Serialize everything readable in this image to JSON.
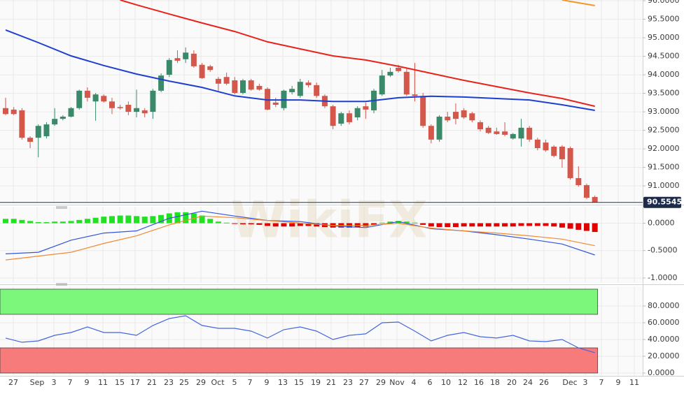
{
  "watermark": "WikiFX",
  "chart_data": [
    {
      "type": "candlestick",
      "up_color": "#3a8a6a",
      "down_color": "#d4574c",
      "open": [
        93.1,
        93.06,
        93.04,
        92.3,
        92.3,
        92.34,
        92.66,
        92.81,
        92.87,
        93.1,
        93.57,
        93.28,
        93.43,
        93.28,
        93.13,
        93.19,
        93.0,
        93.04,
        93.0,
        93.57,
        94.0,
        94.45,
        94.42,
        94.57,
        94.27,
        94.23,
        93.89,
        93.94,
        93.85,
        93.51,
        93.85,
        93.7,
        93.62,
        93.25,
        93.1,
        93.53,
        93.43,
        93.79,
        93.72,
        93.43,
        93.15,
        92.68,
        92.96,
        92.85,
        93.15,
        93.04,
        93.47,
        93.98,
        94.19,
        94.08,
        93.47,
        93.43,
        92.62,
        92.25,
        92.87,
        93.0,
        93.04,
        92.96,
        92.72,
        92.57,
        92.47,
        92.47,
        92.28,
        92.28,
        92.57,
        92.25,
        92.17,
        92.06,
        92.06,
        92.02,
        91.21,
        91.02,
        90.7
      ],
      "high": [
        93.38,
        93.13,
        93.1,
        92.34,
        92.66,
        92.72,
        93.1,
        92.91,
        93.13,
        93.6,
        93.66,
        93.51,
        93.47,
        93.38,
        93.19,
        93.28,
        93.6,
        93.1,
        93.62,
        94.04,
        94.45,
        94.66,
        94.74,
        94.66,
        94.32,
        94.27,
        93.94,
        94.06,
        93.94,
        93.89,
        93.89,
        93.76,
        93.66,
        93.38,
        93.6,
        93.7,
        93.89,
        93.85,
        93.79,
        93.47,
        93.19,
        93.0,
        93.04,
        93.15,
        93.25,
        93.62,
        94.13,
        94.19,
        94.27,
        94.19,
        94.32,
        93.51,
        92.66,
        92.91,
        93.0,
        93.23,
        93.1,
        93.0,
        92.77,
        92.62,
        92.57,
        92.72,
        92.43,
        92.81,
        92.62,
        92.3,
        92.25,
        92.1,
        92.1,
        92.06,
        91.53,
        91.06,
        90.74
      ],
      "low": [
        92.91,
        92.91,
        92.25,
        92.02,
        91.77,
        92.28,
        92.62,
        92.77,
        92.85,
        93.06,
        93.28,
        92.76,
        93.25,
        92.94,
        93.06,
        92.91,
        92.85,
        92.85,
        92.81,
        93.53,
        93.94,
        94.32,
        94.32,
        94.19,
        93.89,
        94.08,
        93.57,
        93.72,
        93.47,
        93.47,
        93.57,
        93.57,
        93.04,
        93.13,
        93.04,
        93.47,
        93.38,
        93.66,
        93.38,
        93.1,
        92.53,
        92.62,
        92.66,
        92.77,
        92.81,
        92.96,
        93.43,
        93.94,
        94.06,
        93.43,
        93.28,
        92.57,
        92.15,
        92.19,
        92.72,
        92.66,
        92.81,
        92.72,
        92.47,
        92.4,
        92.38,
        92.34,
        92.25,
        92.06,
        92.19,
        91.96,
        91.92,
        91.77,
        91.49,
        91.17,
        90.98,
        90.64,
        90.55
      ],
      "close": [
        92.94,
        92.94,
        92.3,
        92.19,
        92.62,
        92.66,
        92.81,
        92.87,
        93.1,
        93.57,
        93.38,
        93.47,
        93.28,
        93.1,
        93.1,
        93.0,
        93.1,
        92.96,
        93.57,
        93.98,
        94.4,
        94.38,
        94.6,
        94.23,
        93.91,
        94.13,
        93.76,
        93.76,
        93.51,
        93.85,
        93.6,
        93.6,
        93.06,
        93.19,
        93.57,
        93.62,
        93.81,
        93.72,
        93.43,
        93.15,
        92.62,
        92.96,
        92.72,
        93.1,
        93.06,
        93.57,
        93.98,
        94.08,
        94.1,
        93.47,
        93.43,
        92.62,
        92.25,
        92.87,
        92.77,
        92.81,
        92.85,
        92.77,
        92.53,
        92.43,
        92.4,
        92.38,
        92.4,
        92.57,
        92.25,
        92.02,
        91.96,
        91.81,
        91.72,
        91.21,
        91.02,
        90.68,
        90.55
      ],
      "series": [
        {
          "color": "#1f3fd0",
          "x": [
            0,
            4,
            8,
            12,
            16,
            20,
            24,
            28,
            32,
            36,
            40,
            44,
            48,
            52,
            56,
            60,
            64,
            68,
            72
          ],
          "values": [
            95.21,
            94.87,
            94.51,
            94.25,
            94.02,
            93.83,
            93.66,
            93.43,
            93.32,
            93.32,
            93.28,
            93.28,
            93.38,
            93.42,
            93.4,
            93.36,
            93.32,
            93.19,
            93.04
          ]
        },
        {
          "color": "#e8231c",
          "x": [
            14,
            16,
            20,
            24,
            28,
            32,
            36,
            40,
            44,
            48,
            52,
            56,
            60,
            64,
            68,
            72
          ],
          "values": [
            96.02,
            95.89,
            95.64,
            95.4,
            95.17,
            94.89,
            94.7,
            94.51,
            94.4,
            94.23,
            94.04,
            93.85,
            93.68,
            93.51,
            93.36,
            93.15
          ]
        },
        {
          "color": "#f0982a",
          "x": [
            68,
            72
          ],
          "values": [
            96.02,
            95.87
          ]
        }
      ],
      "last_price": 90.5545,
      "ylim": [
        90.53,
        96.02
      ],
      "yticks": [
        {
          "value": 96,
          "label": "96.0000"
        },
        {
          "value": 95.5,
          "label": "95.5000"
        },
        {
          "value": 95,
          "label": "95.0000"
        },
        {
          "value": 94.5,
          "label": "94.5000"
        },
        {
          "value": 94,
          "label": "94.0000"
        },
        {
          "value": 93.5,
          "label": "93.5000"
        },
        {
          "value": 93,
          "label": "93.0000"
        },
        {
          "value": 92.5,
          "label": "92.5000"
        },
        {
          "value": 92,
          "label": "92.0000"
        },
        {
          "value": 91.5,
          "label": "91.5000"
        },
        {
          "value": 91,
          "label": "91.0000"
        }
      ],
      "grid": true
    },
    {
      "type": "macd",
      "up_color": "#22e022",
      "down_color": "#e00000",
      "histogram": [
        0.08,
        0.08,
        0.06,
        0.04,
        0.02,
        0.02,
        0.03,
        0.03,
        0.04,
        0.06,
        0.08,
        0.1,
        0.12,
        0.13,
        0.14,
        0.14,
        0.13,
        0.12,
        0.13,
        0.15,
        0.18,
        0.2,
        0.2,
        0.18,
        0.14,
        0.08,
        0.03,
        0.01,
        -0.01,
        -0.02,
        -0.02,
        -0.03,
        -0.05,
        -0.06,
        -0.06,
        -0.06,
        -0.05,
        -0.05,
        -0.06,
        -0.07,
        -0.08,
        -0.08,
        -0.08,
        -0.07,
        -0.06,
        -0.03,
        0.01,
        0.03,
        0.04,
        0.03,
        0.01,
        -0.03,
        -0.06,
        -0.07,
        -0.07,
        -0.07,
        -0.06,
        -0.06,
        -0.06,
        -0.06,
        -0.06,
        -0.06,
        -0.06,
        -0.05,
        -0.05,
        -0.05,
        -0.05,
        -0.06,
        -0.08,
        -0.1,
        -0.12,
        -0.14,
        -0.16
      ],
      "series": [
        {
          "color": "#3355dd",
          "x": [
            0,
            4,
            8,
            12,
            16,
            20,
            24,
            28,
            32,
            36,
            40,
            44,
            48,
            52,
            56,
            60,
            64,
            68,
            72
          ],
          "values": [
            -0.56,
            -0.53,
            -0.31,
            -0.18,
            -0.14,
            0.09,
            0.22,
            0.13,
            0.05,
            0.03,
            -0.05,
            -0.08,
            0.03,
            -0.1,
            -0.14,
            -0.21,
            -0.29,
            -0.38,
            -0.58
          ]
        },
        {
          "color": "#f08a30",
          "x": [
            0,
            4,
            8,
            12,
            16,
            20,
            24,
            28,
            32,
            36,
            40,
            44,
            48,
            52,
            56,
            60,
            64,
            68,
            72
          ],
          "values": [
            -0.67,
            -0.6,
            -0.53,
            -0.37,
            -0.23,
            -0.03,
            0.13,
            0.1,
            0.05,
            0.0,
            -0.04,
            -0.04,
            0.0,
            -0.09,
            -0.14,
            -0.18,
            -0.23,
            -0.29,
            -0.41
          ]
        }
      ],
      "ylim": [
        -1.09,
        0.3
      ],
      "yticks": [
        {
          "value": 0,
          "label": "0.0000"
        },
        {
          "value": -0.5,
          "label": "-0.5000"
        },
        {
          "value": -1,
          "label": "-1.0000"
        }
      ],
      "grid": true
    },
    {
      "type": "rsi",
      "bands": [
        {
          "from": 70,
          "to": 100,
          "color": "#7cf77c"
        },
        {
          "from": 0,
          "to": 30,
          "color": "#f77b7b"
        }
      ],
      "series": [
        {
          "color": "#4466dd",
          "x": [
            0,
            2,
            4,
            6,
            8,
            10,
            12,
            14,
            16,
            18,
            20,
            22,
            24,
            26,
            28,
            30,
            32,
            34,
            36,
            38,
            40,
            42,
            44,
            46,
            48,
            50,
            52,
            54,
            56,
            58,
            60,
            62,
            64,
            66,
            68,
            70,
            72
          ],
          "values": [
            41.7,
            36.7,
            38.3,
            45.0,
            48.3,
            55.0,
            48.3,
            48.3,
            45.0,
            56.7,
            65.0,
            68.3,
            56.7,
            53.3,
            53.3,
            50.0,
            41.7,
            51.7,
            55.0,
            50.0,
            40.0,
            45.0,
            46.7,
            60.0,
            60.8,
            50.0,
            38.3,
            45.0,
            48.3,
            43.3,
            41.7,
            45.0,
            38.3,
            37.5,
            40.0,
            30.0,
            24.2
          ]
        }
      ],
      "ylim": [
        -2.5,
        103.3
      ],
      "yticks": [
        {
          "value": 0,
          "label": "0.0000"
        },
        {
          "value": 20,
          "label": "20.0000"
        },
        {
          "value": 40,
          "label": "40.0000"
        },
        {
          "value": 60,
          "label": "60.0000"
        },
        {
          "value": 80,
          "label": "80.0000"
        }
      ],
      "xticks": [
        {
          "value": 0.94,
          "label": "27"
        },
        {
          "value": 3.85,
          "label": "Sep"
        },
        {
          "value": 5.9,
          "label": "3"
        },
        {
          "value": 7.87,
          "label": "7"
        },
        {
          "value": 9.92,
          "label": "9"
        },
        {
          "value": 11.89,
          "label": "11"
        },
        {
          "value": 13.94,
          "label": "15"
        },
        {
          "value": 15.83,
          "label": "17"
        },
        {
          "value": 17.88,
          "label": "21"
        },
        {
          "value": 19.93,
          "label": "23"
        },
        {
          "value": 21.81,
          "label": "25"
        },
        {
          "value": 23.87,
          "label": "29"
        },
        {
          "value": 25.92,
          "label": "Oct"
        },
        {
          "value": 27.97,
          "label": "5"
        },
        {
          "value": 29.85,
          "label": "7"
        },
        {
          "value": 31.91,
          "label": "9"
        },
        {
          "value": 33.88,
          "label": "13"
        },
        {
          "value": 35.84,
          "label": "15"
        },
        {
          "value": 37.9,
          "label": "19"
        },
        {
          "value": 39.78,
          "label": "21"
        },
        {
          "value": 41.83,
          "label": "23"
        },
        {
          "value": 43.8,
          "label": "27"
        },
        {
          "value": 45.85,
          "label": "29"
        },
        {
          "value": 47.82,
          "label": "Nov"
        },
        {
          "value": 49.87,
          "label": "4"
        },
        {
          "value": 51.84,
          "label": "6"
        },
        {
          "value": 53.81,
          "label": "10"
        },
        {
          "value": 55.86,
          "label": "12"
        },
        {
          "value": 57.83,
          "label": "16"
        },
        {
          "value": 59.79,
          "label": "18"
        },
        {
          "value": 61.85,
          "label": "20"
        },
        {
          "value": 63.82,
          "label": "24"
        },
        {
          "value": 65.78,
          "label": "26"
        },
        {
          "value": 68.95,
          "label": "Dec"
        },
        {
          "value": 70.83,
          "label": "3"
        },
        {
          "value": 72.8,
          "label": "7"
        },
        {
          "value": 74.85,
          "label": "9"
        },
        {
          "value": 76.82,
          "label": "11"
        }
      ],
      "grid": true
    }
  ]
}
